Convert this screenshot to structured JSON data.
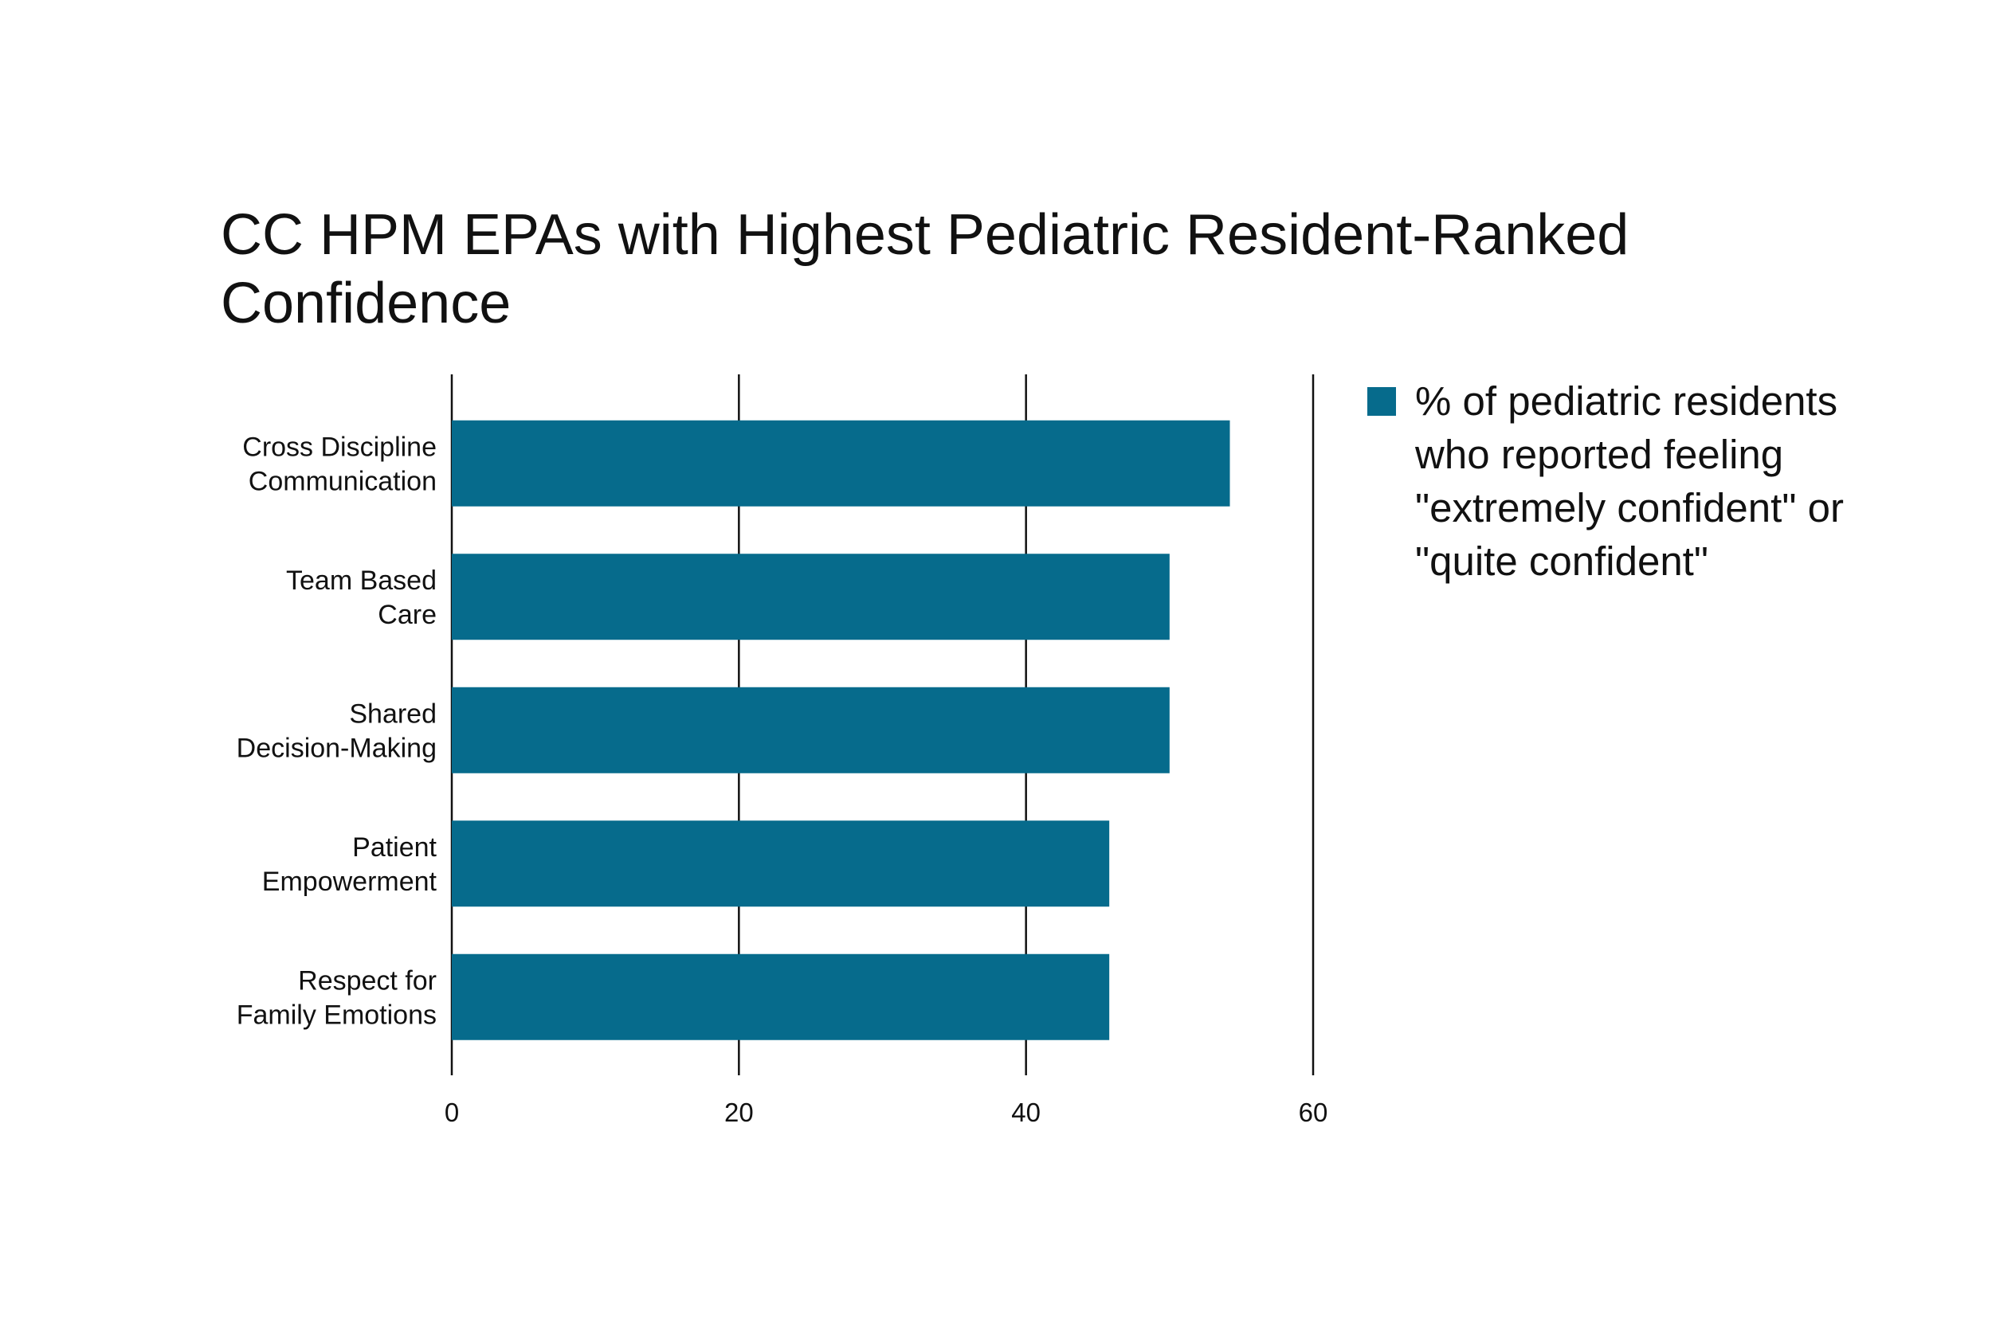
{
  "chart_data": {
    "type": "bar",
    "orientation": "horizontal",
    "title": "CC HPM EPAs with Highest Pediatric Resident-Ranked Confidence",
    "xlabel": "",
    "ylabel": "",
    "categories": [
      [
        "Cross Discipline",
        "Communication"
      ],
      [
        "Team Based",
        "Care"
      ],
      [
        "Shared",
        "Decision-Making"
      ],
      [
        "Patient",
        "Empowerment"
      ],
      [
        "Respect for",
        "Family Emotions"
      ]
    ],
    "series": [
      {
        "name": "% of pediatric residents who reported feeling \"extremely confident\" or \"quite confident\"",
        "color": "#066b8c",
        "values": [
          54.2,
          50,
          50,
          45.8,
          45.8
        ]
      }
    ],
    "xlim": [
      0,
      60
    ],
    "xticks": [
      0,
      20,
      40,
      60
    ],
    "grid": true,
    "legend_position": "right"
  }
}
